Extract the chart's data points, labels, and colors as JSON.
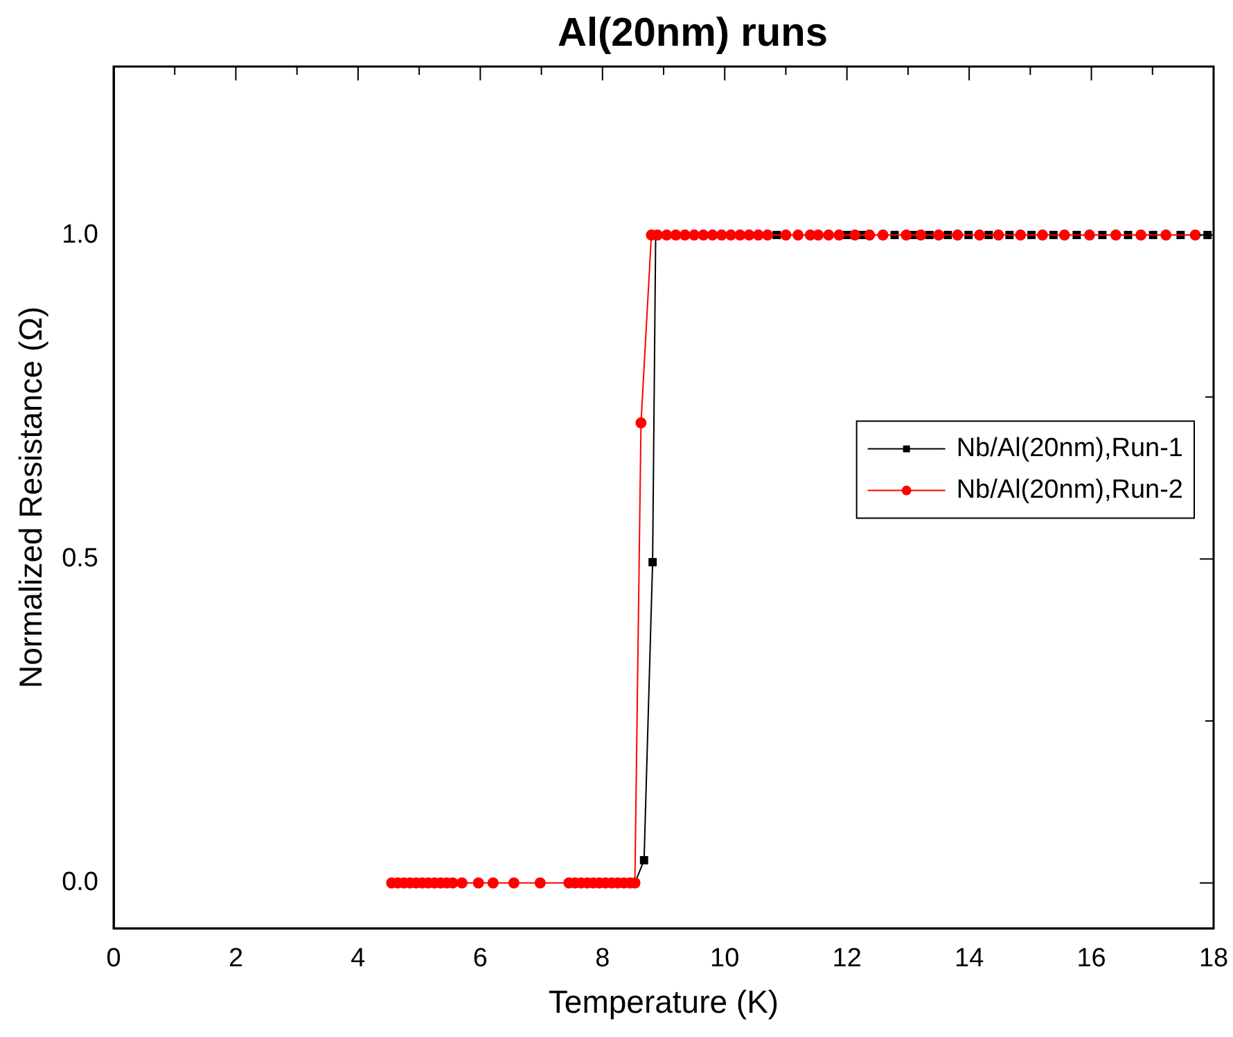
{
  "chart_data": {
    "type": "line",
    "title": "Al(20nm) runs",
    "xlabel": "Temperature (K)",
    "ylabel": "Normalized Resistance (Ω)",
    "xlim": [
      0,
      18
    ],
    "xticks": [
      0,
      {
        "value": 1,
        "label": null
      },
      2,
      {
        "value": 3,
        "label": null
      },
      4,
      {
        "value": 5,
        "label": null
      },
      6,
      {
        "value": 7,
        "label": null
      },
      8,
      {
        "value": 9,
        "label": null
      },
      10,
      {
        "value": 11,
        "label": null
      },
      12,
      {
        "value": 13,
        "label": null
      },
      14,
      {
        "value": 15,
        "label": null
      },
      16,
      {
        "value": 17,
        "label": null
      },
      18
    ],
    "ylim": [
      -0.07,
      1.26
    ],
    "yticks": [
      {
        "value": 0,
        "label": "0.0"
      },
      {
        "value": 0.25,
        "label": null
      },
      {
        "value": 0.5,
        "label": "0.5"
      },
      {
        "value": 0.75,
        "label": null
      },
      {
        "value": 1,
        "label": "1.0"
      }
    ],
    "grid": false,
    "legend": "right",
    "line_style": "solid",
    "series": [
      {
        "name": "Nb/Al(20nm),Run-1",
        "color": "#000000",
        "marker": "square",
        "x": [
          8.53,
          8.68,
          8.82,
          8.87,
          10.85,
          12.0,
          12.25,
          12.78,
          13.09,
          13.35,
          13.65,
          13.99,
          14.32,
          14.66,
          15.02,
          15.38,
          15.76,
          16.18,
          16.6,
          17.01,
          17.46,
          17.9
        ],
        "values": [
          0,
          0.035,
          0.495,
          1,
          1,
          1,
          1,
          1,
          1,
          1,
          1,
          1,
          1,
          1,
          1,
          1,
          1,
          1,
          1,
          1,
          1,
          1
        ]
      },
      {
        "name": "Nb/Al(20nm),Run-2",
        "color": "#ff0000",
        "marker": "circle",
        "x": [
          4.55,
          4.65,
          4.75,
          4.85,
          4.95,
          5.05,
          5.15,
          5.25,
          5.35,
          5.45,
          5.55,
          5.7,
          5.97,
          6.21,
          6.55,
          6.98,
          7.45,
          7.55,
          7.65,
          7.75,
          7.85,
          7.95,
          8.05,
          8.15,
          8.25,
          8.35,
          8.45,
          8.53,
          8.63,
          8.8,
          8.9,
          9.05,
          9.2,
          9.35,
          9.5,
          9.65,
          9.8,
          9.95,
          10.1,
          10.25,
          10.4,
          10.55,
          10.7,
          11.0,
          11.2,
          11.4,
          11.53,
          11.7,
          11.87,
          12.13,
          12.37,
          12.59,
          12.97,
          13.21,
          13.5,
          13.81,
          14.17,
          14.48,
          14.84,
          15.2,
          15.56,
          15.97,
          16.4,
          16.81,
          17.22,
          17.7
        ],
        "values": [
          0,
          0,
          0,
          0,
          0,
          0,
          0,
          0,
          0,
          0,
          0,
          0,
          0,
          0,
          0,
          0,
          0,
          0,
          0,
          0,
          0,
          0,
          0,
          0,
          0,
          0,
          0,
          0,
          0.71,
          1,
          1,
          1,
          1,
          1,
          1,
          1,
          1,
          1,
          1,
          1,
          1,
          1,
          1,
          1,
          1,
          1,
          1,
          1,
          1,
          1,
          1,
          1,
          1,
          1,
          1,
          1,
          1,
          1,
          1,
          1,
          1,
          1,
          1,
          1,
          1,
          1
        ]
      }
    ]
  }
}
